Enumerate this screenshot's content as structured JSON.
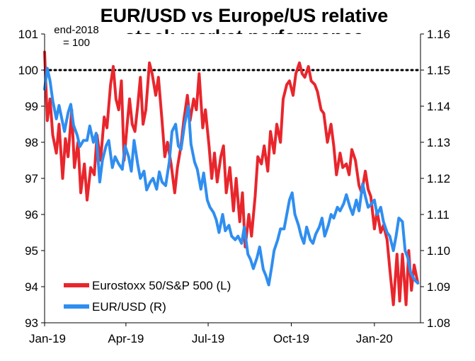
{
  "chart_data": {
    "type": "line",
    "title_line1": "EUR/USD vs Europe/US relative",
    "title_line2": "stock market performance",
    "annotation_line1": "end-2018",
    "annotation_line2": "= 100",
    "reference_line": 100,
    "x_ticks": [
      "Jan-19",
      "Apr-19",
      "Jul-19",
      "Oct-19",
      "Jan-20"
    ],
    "y_left": {
      "ticks": [
        "93",
        "94",
        "95",
        "96",
        "97",
        "98",
        "99",
        "100",
        "101"
      ],
      "range": [
        93,
        101
      ]
    },
    "y_right": {
      "ticks": [
        "1.08",
        "1.09",
        "1.10",
        "1.11",
        "1.12",
        "1.13",
        "1.14",
        "1.15",
        "1.16"
      ],
      "range": [
        1.08,
        1.16
      ]
    },
    "x_range_days": [
      0,
      416
    ],
    "series": [
      {
        "name": "Eurostoxx 50/S&P 500 (L)",
        "axis": "left",
        "color": "#e8262c",
        "points": [
          [
            0,
            100.5
          ],
          [
            3,
            98.6
          ],
          [
            6,
            99.2
          ],
          [
            9,
            98.2
          ],
          [
            13,
            97.7
          ],
          [
            16,
            98.5
          ],
          [
            20,
            97.0
          ],
          [
            23,
            98.1
          ],
          [
            26,
            97.6
          ],
          [
            30,
            98.9
          ],
          [
            33,
            97.3
          ],
          [
            37,
            98.0
          ],
          [
            40,
            96.6
          ],
          [
            44,
            97.4
          ],
          [
            47,
            96.4
          ],
          [
            51,
            97.3
          ],
          [
            55,
            97.1
          ],
          [
            58,
            98.2
          ],
          [
            62,
            97.5
          ],
          [
            66,
            98.7
          ],
          [
            69,
            98.4
          ],
          [
            73,
            99.6
          ],
          [
            76,
            100.1
          ],
          [
            79,
            99.2
          ],
          [
            82,
            98.9
          ],
          [
            85,
            99.7
          ],
          [
            88,
            97.5
          ],
          [
            91,
            98.4
          ],
          [
            94,
            99.2
          ],
          [
            97,
            98.5
          ],
          [
            100,
            98.3
          ],
          [
            103,
            99.0
          ],
          [
            106,
            99.8
          ],
          [
            109,
            98.5
          ],
          [
            112,
            98.9
          ],
          [
            116,
            100.2
          ],
          [
            119,
            99.9
          ],
          [
            123,
            99.3
          ],
          [
            126,
            99.8
          ],
          [
            130,
            98.6
          ],
          [
            133,
            97.6
          ],
          [
            136,
            98.0
          ],
          [
            140,
            97.4
          ],
          [
            144,
            96.6
          ],
          [
            147,
            97.3
          ],
          [
            151,
            97.9
          ],
          [
            154,
            98.6
          ],
          [
            158,
            99.3
          ],
          [
            161,
            98.6
          ],
          [
            165,
            99.2
          ],
          [
            168,
            98.9
          ],
          [
            171,
            99.9
          ],
          [
            175,
            98.4
          ],
          [
            178,
            98.9
          ],
          [
            182,
            97.9
          ],
          [
            185,
            97.0
          ],
          [
            188,
            97.7
          ],
          [
            191,
            96.9
          ],
          [
            195,
            97.6
          ],
          [
            198,
            97.9
          ],
          [
            201,
            96.6
          ],
          [
            205,
            97.3
          ],
          [
            209,
            96.1
          ],
          [
            212,
            97.0
          ],
          [
            216,
            95.8
          ],
          [
            219,
            96.6
          ],
          [
            222,
            95.1
          ],
          [
            226,
            96.0
          ],
          [
            229,
            95.4
          ],
          [
            233,
            96.5
          ],
          [
            236,
            97.6
          ],
          [
            240,
            97.4
          ],
          [
            243,
            97.9
          ],
          [
            247,
            97.2
          ],
          [
            250,
            98.3
          ],
          [
            254,
            97.7
          ],
          [
            257,
            98.5
          ],
          [
            261,
            98.0
          ],
          [
            264,
            99.2
          ],
          [
            268,
            99.6
          ],
          [
            271,
            99.7
          ],
          [
            275,
            99.3
          ],
          [
            278,
            99.9
          ],
          [
            282,
            100.2
          ],
          [
            285,
            99.9
          ],
          [
            288,
            99.8
          ],
          [
            292,
            100.1
          ],
          [
            295,
            99.7
          ],
          [
            299,
            99.6
          ],
          [
            302,
            99.4
          ],
          [
            306,
            98.9
          ],
          [
            309,
            98.8
          ],
          [
            313,
            98.0
          ],
          [
            317,
            98.5
          ],
          [
            320,
            97.9
          ],
          [
            323,
            97.1
          ],
          [
            327,
            97.7
          ],
          [
            330,
            97.3
          ],
          [
            334,
            97.4
          ],
          [
            337,
            97.1
          ],
          [
            340,
            97.8
          ],
          [
            344,
            97.5
          ],
          [
            348,
            96.8
          ],
          [
            351,
            96.6
          ],
          [
            355,
            97.2
          ],
          [
            358,
            96.7
          ],
          [
            361,
            96.5
          ],
          [
            365,
            95.6
          ],
          [
            368,
            96.1
          ],
          [
            372,
            95.5
          ],
          [
            375,
            95.7
          ],
          [
            379,
            95.3
          ],
          [
            382,
            94.5
          ],
          [
            386,
            93.5
          ],
          [
            390,
            94.9
          ],
          [
            393,
            93.6
          ],
          [
            396,
            94.9
          ],
          [
            400,
            93.5
          ],
          [
            403,
            95.0
          ],
          [
            406,
            93.9
          ],
          [
            409,
            94.6
          ],
          [
            413,
            94.1
          ]
        ]
      },
      {
        "name": "EUR/USD (R)",
        "axis": "right",
        "color": "#2f8ef0",
        "points": [
          [
            0,
            1.1447
          ],
          [
            3,
            1.1505
          ],
          [
            6,
            1.147
          ],
          [
            9,
            1.1415
          ],
          [
            13,
            1.1365
          ],
          [
            16,
            1.1402
          ],
          [
            19,
            1.1365
          ],
          [
            22,
            1.133
          ],
          [
            26,
            1.1382
          ],
          [
            29,
            1.1405
          ],
          [
            32,
            1.1348
          ],
          [
            36,
            1.132
          ],
          [
            39,
            1.1288
          ],
          [
            43,
            1.1305
          ],
          [
            47,
            1.1305
          ],
          [
            50,
            1.1345
          ],
          [
            54,
            1.13
          ],
          [
            57,
            1.1325
          ],
          [
            61,
            1.119
          ],
          [
            64,
            1.125
          ],
          [
            68,
            1.129
          ],
          [
            71,
            1.1305
          ],
          [
            75,
            1.123
          ],
          [
            78,
            1.126
          ],
          [
            82,
            1.124
          ],
          [
            86,
            1.1225
          ],
          [
            89,
            1.129
          ],
          [
            93,
            1.126
          ],
          [
            96,
            1.122
          ],
          [
            99,
            1.1305
          ],
          [
            103,
            1.124
          ],
          [
            106,
            1.12
          ],
          [
            110,
            1.122
          ],
          [
            113,
            1.1168
          ],
          [
            117,
            1.119
          ],
          [
            120,
            1.12
          ],
          [
            124,
            1.117
          ],
          [
            127,
            1.1218
          ],
          [
            130,
            1.119
          ],
          [
            134,
            1.118
          ],
          [
            138,
            1.1245
          ],
          [
            141,
            1.133
          ],
          [
            145,
            1.135
          ],
          [
            148,
            1.129
          ],
          [
            151,
            1.128
          ],
          [
            155,
            1.135
          ],
          [
            159,
            1.14
          ],
          [
            162,
            1.1295
          ],
          [
            166,
            1.1245
          ],
          [
            169,
            1.1225
          ],
          [
            173,
            1.117
          ],
          [
            176,
            1.1215
          ],
          [
            180,
            1.114
          ],
          [
            183,
            1.112
          ],
          [
            187,
            1.1105
          ],
          [
            190,
            1.1085
          ],
          [
            193,
            1.105
          ],
          [
            197,
            1.11
          ],
          [
            200,
            1.1055
          ],
          [
            204,
            1.107
          ],
          [
            207,
            1.104
          ],
          [
            211,
            1.103
          ],
          [
            214,
            1.104
          ],
          [
            218,
            1.102
          ],
          [
            221,
            1.1065
          ],
          [
            225,
            1.099
          ],
          [
            228,
            1.0975
          ],
          [
            231,
            1.095
          ],
          [
            235,
            1.098
          ],
          [
            238,
            1.101
          ],
          [
            242,
            1.0948
          ],
          [
            245,
            1.093
          ],
          [
            248,
            1.0905
          ],
          [
            251,
            1.095
          ],
          [
            254,
            1.1
          ],
          [
            258,
            1.103
          ],
          [
            261,
            1.106
          ],
          [
            265,
            1.106
          ],
          [
            268,
            1.11
          ],
          [
            271,
            1.114
          ],
          [
            274,
            1.116
          ],
          [
            277,
            1.11
          ],
          [
            281,
            1.107
          ],
          [
            284,
            1.104
          ],
          [
            287,
            1.102
          ],
          [
            290,
            1.1065
          ],
          [
            294,
            1.103
          ],
          [
            297,
            1.102
          ],
          [
            300,
            1.1045
          ],
          [
            304,
            1.1065
          ],
          [
            307,
            1.109
          ],
          [
            310,
            1.104
          ],
          [
            314,
            1.107
          ],
          [
            317,
            1.11
          ],
          [
            320,
            1.109
          ],
          [
            324,
            1.112
          ],
          [
            327,
            1.111
          ],
          [
            331,
            1.113
          ],
          [
            334,
            1.1155
          ],
          [
            338,
            1.112
          ],
          [
            341,
            1.11
          ],
          [
            345,
            1.114
          ],
          [
            348,
            1.111
          ],
          [
            352,
            1.1185
          ],
          [
            355,
            1.115
          ],
          [
            358,
            1.112
          ],
          [
            362,
            1.113
          ],
          [
            365,
            1.114
          ],
          [
            368,
            1.11
          ],
          [
            372,
            1.112
          ],
          [
            375,
            1.108
          ],
          [
            379,
            1.105
          ],
          [
            382,
            1.104
          ],
          [
            386,
            1.1
          ],
          [
            389,
            1.104
          ],
          [
            392,
            1.109
          ],
          [
            396,
            1.108
          ],
          [
            399,
            1.1
          ],
          [
            402,
            1.098
          ],
          [
            405,
            1.094
          ],
          [
            409,
            1.092
          ],
          [
            413,
            1.091
          ]
        ]
      }
    ],
    "grid": false,
    "legend_placement": "bottom-left"
  }
}
